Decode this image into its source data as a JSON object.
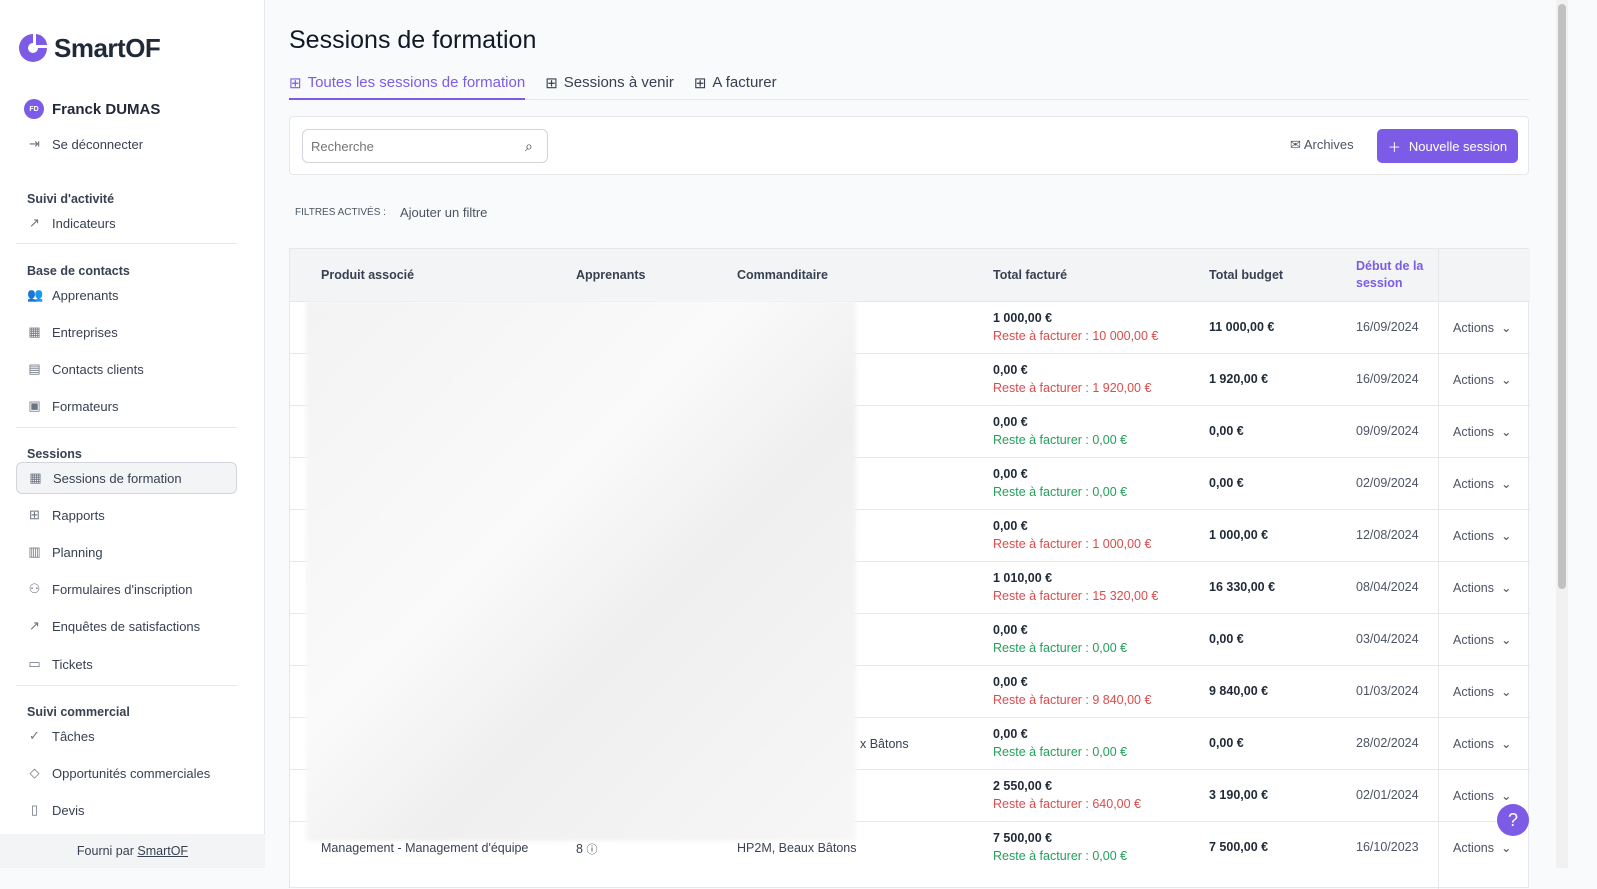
{
  "app": {
    "brand": "SmartOF",
    "accent": "#7c5ce6"
  },
  "user": {
    "initials": "FD",
    "name": "Franck DUMAS",
    "logout": "Se déconnecter"
  },
  "sidebar": {
    "sections": [
      {
        "title": "Suivi d'activité",
        "items": [
          {
            "label": "Indicateurs",
            "icon": "chart-icon"
          }
        ]
      },
      {
        "title": "Base de contacts",
        "items": [
          {
            "label": "Apprenants",
            "icon": "users-icon"
          },
          {
            "label": "Entreprises",
            "icon": "building-icon"
          },
          {
            "label": "Contacts clients",
            "icon": "id-card-icon"
          },
          {
            "label": "Formateurs",
            "icon": "briefcase-icon"
          }
        ]
      },
      {
        "title": "Sessions",
        "items": [
          {
            "label": "Sessions de formation",
            "icon": "calendar-icon",
            "active": true
          },
          {
            "label": "Rapports",
            "icon": "table-icon"
          },
          {
            "label": "Planning",
            "icon": "map-icon"
          },
          {
            "label": "Formulaires d'inscription",
            "icon": "user-add-icon"
          },
          {
            "label": "Enquêtes de satisfactions",
            "icon": "chart-icon"
          },
          {
            "label": "Tickets",
            "icon": "ticket-icon"
          }
        ]
      },
      {
        "title": "Suivi commercial",
        "items": [
          {
            "label": "Tâches",
            "icon": "check-circle-icon"
          },
          {
            "label": "Opportunités commerciales",
            "icon": "tag-icon"
          },
          {
            "label": "Devis",
            "icon": "document-icon"
          }
        ]
      }
    ],
    "footer_prefix": "Fourni par",
    "footer_link": "SmartOF"
  },
  "page": {
    "title": "Sessions de formation",
    "tabs": [
      "Toutes les sessions de formation",
      "Sessions à venir",
      "A facturer"
    ]
  },
  "toolbar": {
    "search_placeholder": "Recherche",
    "archives": "Archives",
    "new_session": "Nouvelle session"
  },
  "filters": {
    "label": "FILTRES ACTIVÉS :",
    "add": "Ajouter un filtre"
  },
  "table": {
    "columns": [
      "Produit associé",
      "Apprenants",
      "Commanditaire",
      "Total facturé",
      "Total budget",
      "Début de la session"
    ],
    "action_label": "Actions",
    "rows": [
      {
        "product": "",
        "learners": "",
        "sponsor": "",
        "billed": "1 000,00 €",
        "remaining": "Reste à facturer : 10 000,00 €",
        "remaining_status": "red",
        "budget": "11 000,00 €",
        "start": "16/09/2024"
      },
      {
        "product": "",
        "learners": "",
        "sponsor": "",
        "billed": "0,00 €",
        "remaining": "Reste à facturer : 1 920,00 €",
        "remaining_status": "red",
        "budget": "1 920,00 €",
        "start": "16/09/2024"
      },
      {
        "product": "",
        "learners": "",
        "sponsor": "",
        "billed": "0,00 €",
        "remaining": "Reste à facturer : 0,00 €",
        "remaining_status": "green",
        "budget": "0,00 €",
        "start": "09/09/2024"
      },
      {
        "product": "",
        "learners": "",
        "sponsor": "",
        "billed": "0,00 €",
        "remaining": "Reste à facturer : 0,00 €",
        "remaining_status": "green",
        "budget": "0,00 €",
        "start": "02/09/2024"
      },
      {
        "product": "",
        "learners": "",
        "sponsor": "",
        "billed": "0,00 €",
        "remaining": "Reste à facturer : 1 000,00 €",
        "remaining_status": "red",
        "budget": "1 000,00 €",
        "start": "12/08/2024"
      },
      {
        "product": "",
        "learners": "",
        "sponsor": "",
        "billed": "1 010,00 €",
        "remaining": "Reste à facturer : 15 320,00 €",
        "remaining_status": "red",
        "budget": "16 330,00 €",
        "start": "08/04/2024"
      },
      {
        "product": "",
        "learners": "",
        "sponsor": "",
        "billed": "0,00 €",
        "remaining": "Reste à facturer : 0,00 €",
        "remaining_status": "green",
        "budget": "0,00 €",
        "start": "03/04/2024"
      },
      {
        "product": "",
        "learners": "",
        "sponsor": "",
        "billed": "0,00 €",
        "remaining": "Reste à facturer : 9 840,00 €",
        "remaining_status": "red",
        "budget": "9 840,00 €",
        "start": "01/03/2024"
      },
      {
        "product": "",
        "learners": "",
        "sponsor": "x Bâtons",
        "billed": "0,00 €",
        "remaining": "Reste à facturer : 0,00 €",
        "remaining_status": "green",
        "budget": "0,00 €",
        "start": "28/02/2024"
      },
      {
        "product": "",
        "learners": "",
        "sponsor": "",
        "billed": "2 550,00 €",
        "remaining": "Reste à facturer : 640,00 €",
        "remaining_status": "red",
        "budget": "3 190,00 €",
        "start": "02/01/2024"
      },
      {
        "product": "Management - Management d'équipe",
        "learners": "8",
        "sponsor": "HP2M, Beaux Bâtons",
        "billed": "7 500,00 €",
        "remaining": "Reste à facturer : 0,00 €",
        "remaining_status": "green",
        "budget": "7 500,00 €",
        "start": "16/10/2023"
      }
    ]
  },
  "help": "?"
}
